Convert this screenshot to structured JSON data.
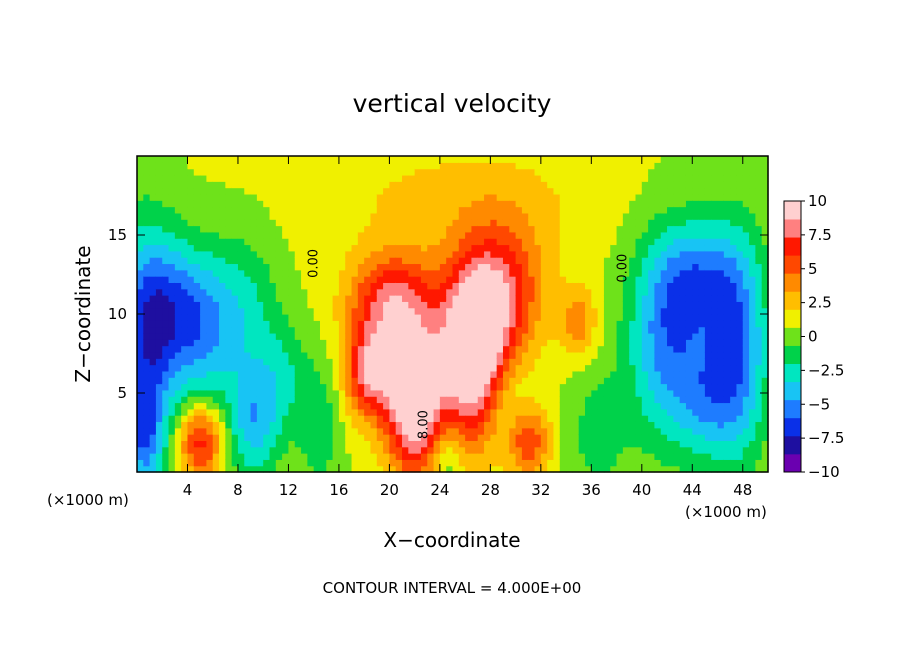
{
  "chart_data": {
    "type": "heatmap",
    "title": "vertical velocity",
    "xlabel": "X−coordinate",
    "ylabel": "Z−coordinate",
    "x_unit": "(×1000 m)",
    "y_unit": "(×1000 m)",
    "footer": "CONTOUR INTERVAL = 4.000E+00",
    "xlim": [
      0,
      50
    ],
    "ylim": [
      0,
      20
    ],
    "x_ticks": [
      {
        "value": 4,
        "label": "4"
      },
      {
        "value": 8,
        "label": "8"
      },
      {
        "value": 12,
        "label": "12"
      },
      {
        "value": 16,
        "label": "16"
      },
      {
        "value": 20,
        "label": "20"
      },
      {
        "value": 24,
        "label": "24"
      },
      {
        "value": 28,
        "label": "28"
      },
      {
        "value": 32,
        "label": "32"
      },
      {
        "value": 36,
        "label": "36"
      },
      {
        "value": 40,
        "label": "40"
      },
      {
        "value": 44,
        "label": "44"
      },
      {
        "value": 48,
        "label": "48"
      }
    ],
    "y_ticks": [
      {
        "value": 5,
        "label": "5"
      },
      {
        "value": 10,
        "label": "10"
      },
      {
        "value": 15,
        "label": "15"
      }
    ],
    "colorbar": {
      "min": -10,
      "max": 10,
      "ticks": [
        {
          "value": 10,
          "label": "10"
        },
        {
          "value": 7.5,
          "label": "7.5"
        },
        {
          "value": 5,
          "label": "5"
        },
        {
          "value": 2.5,
          "label": "2.5"
        },
        {
          "value": 0,
          "label": "0"
        },
        {
          "value": -2.5,
          "label": "−2.5"
        },
        {
          "value": -5,
          "label": "−5"
        },
        {
          "value": -7.5,
          "label": "−7.5"
        },
        {
          "value": -10,
          "label": "−10"
        }
      ],
      "colors": [
        "#6a00b0",
        "#1e0fa0",
        "#0a30e8",
        "#1e7cff",
        "#18c4f4",
        "#00e6c0",
        "#00d24a",
        "#6ee21a",
        "#f0f000",
        "#ffbe00",
        "#ff8a00",
        "#ff4800",
        "#ff1800",
        "#ff8080",
        "#ffd0d0"
      ]
    },
    "contour_labels": [
      {
        "text": "0.00",
        "x": 14.3,
        "y": 13.2,
        "rotate": -90
      },
      {
        "text": "0.00",
        "x": 38.8,
        "y": 12.9,
        "rotate": -90
      },
      {
        "text": "8.00",
        "x": 23.0,
        "y": 3.0,
        "rotate": -90
      }
    ],
    "field": {
      "background": 0.8,
      "features": [
        {
          "x": 0.7,
          "z": 7.5,
          "sx": 1.8,
          "sz": 5.5,
          "a": -6.5
        },
        {
          "x": 3.2,
          "z": 10.5,
          "sx": 2.4,
          "sz": 3.0,
          "a": -4.5
        },
        {
          "x": 5.2,
          "z": 8.0,
          "sx": 1.8,
          "sz": 3.5,
          "a": -3.0
        },
        {
          "x": 8.5,
          "z": 10.0,
          "sx": 2.0,
          "sz": 3.5,
          "a": -3.0
        },
        {
          "x": 9.2,
          "z": 3.0,
          "sx": 1.5,
          "sz": 2.5,
          "a": -4.5
        },
        {
          "x": 11.5,
          "z": 6.0,
          "sx": 1.5,
          "sz": 2.5,
          "a": -2.5
        },
        {
          "x": 0.6,
          "z": 2.0,
          "sx": 0.9,
          "sz": 1.8,
          "a": -3.5
        },
        {
          "x": 5.0,
          "z": 2.0,
          "sx": 1.3,
          "sz": 1.7,
          "a": 6.5
        },
        {
          "x": 14.5,
          "z": 3.0,
          "sx": 1.2,
          "sz": 3.0,
          "a": -2.5
        },
        {
          "x": 20.0,
          "z": 11.0,
          "sx": 2.2,
          "sz": 2.0,
          "a": 5.5
        },
        {
          "x": 22.0,
          "z": 4.5,
          "sx": 1.6,
          "sz": 3.2,
          "a": 10.0
        },
        {
          "x": 18.5,
          "z": 6.5,
          "sx": 1.4,
          "sz": 2.0,
          "a": 7.0
        },
        {
          "x": 26.5,
          "z": 6.5,
          "sx": 1.6,
          "sz": 3.5,
          "a": 7.0
        },
        {
          "x": 27.5,
          "z": 9.5,
          "sx": 2.0,
          "sz": 3.0,
          "a": 4.5
        },
        {
          "x": 29.0,
          "z": 12.0,
          "sx": 2.5,
          "sz": 3.0,
          "a": 4.5
        },
        {
          "x": 23.5,
          "z": 8.5,
          "sx": 4.0,
          "sz": 4.0,
          "a": 2.5
        },
        {
          "x": 31.0,
          "z": 2.0,
          "sx": 1.2,
          "sz": 1.6,
          "a": 5.0
        },
        {
          "x": 35.0,
          "z": 9.5,
          "sx": 1.0,
          "sz": 1.5,
          "a": 3.5
        },
        {
          "x": 24.5,
          "z": 1.0,
          "sx": 0.9,
          "sz": 1.6,
          "a": -2.5
        },
        {
          "x": 29.5,
          "z": 4.5,
          "sx": 1.3,
          "sz": 2.0,
          "a": -1.5
        },
        {
          "x": 36.5,
          "z": 2.5,
          "sx": 1.8,
          "sz": 3.0,
          "a": -2.0
        },
        {
          "x": 42.0,
          "z": 8.5,
          "sx": 2.2,
          "sz": 4.5,
          "a": -6.0
        },
        {
          "x": 47.5,
          "z": 8.0,
          "sx": 1.8,
          "sz": 5.0,
          "a": -6.5
        },
        {
          "x": 44.5,
          "z": 12.5,
          "sx": 2.2,
          "sz": 2.5,
          "a": -4.0
        },
        {
          "x": 45.0,
          "z": 4.5,
          "sx": 1.8,
          "sz": 2.5,
          "a": -3.0
        },
        {
          "x": 26.0,
          "z": 17.5,
          "sx": 8.0,
          "sz": 2.5,
          "a": 1.5
        }
      ]
    }
  }
}
